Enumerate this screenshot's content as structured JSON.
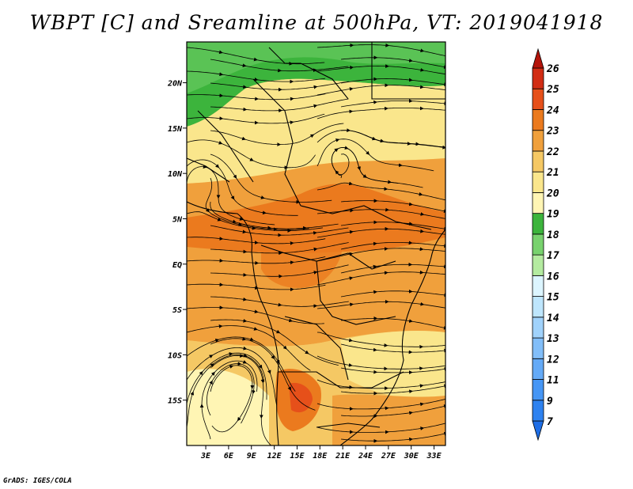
{
  "title": "WBPT [C] and Sreamline at 500hPa, VT: 2019041918",
  "credit": "GrADS: IGES/COLA",
  "map": {
    "lat_labels": [
      "20N",
      "15N",
      "10N",
      "5N",
      "EQ",
      "5S",
      "10S",
      "15S"
    ],
    "lat_values": [
      20,
      15,
      10,
      5,
      0,
      -5,
      -10,
      -15
    ],
    "lon_labels": [
      "3E",
      "6E",
      "9E",
      "12E",
      "15E",
      "18E",
      "21E",
      "24E",
      "27E",
      "30E",
      "33E"
    ],
    "lon_values": [
      3,
      6,
      9,
      12,
      15,
      18,
      21,
      24,
      27,
      30,
      33
    ],
    "lon_range": [
      0.5,
      34.5
    ],
    "lat_range": [
      -20,
      24.5
    ]
  },
  "colorbar": {
    "labels": [
      "7",
      "9",
      "11",
      "12",
      "13",
      "14",
      "15",
      "16",
      "17",
      "18",
      "19",
      "20",
      "21",
      "22",
      "23",
      "24",
      "25",
      "26"
    ],
    "colors": [
      "#1e6ee6",
      "#2e82f0",
      "#4696f5",
      "#64aaf7",
      "#82bef9",
      "#a0d2fb",
      "#bee6fd",
      "#dcf5ff",
      "#b4eba0",
      "#78d26e",
      "#3cb43c",
      "#fff5b4",
      "#fae68c",
      "#f5c864",
      "#f0a03c",
      "#eb7a1e",
      "#e6501a",
      "#d22d14",
      "#b4140a"
    ]
  }
}
